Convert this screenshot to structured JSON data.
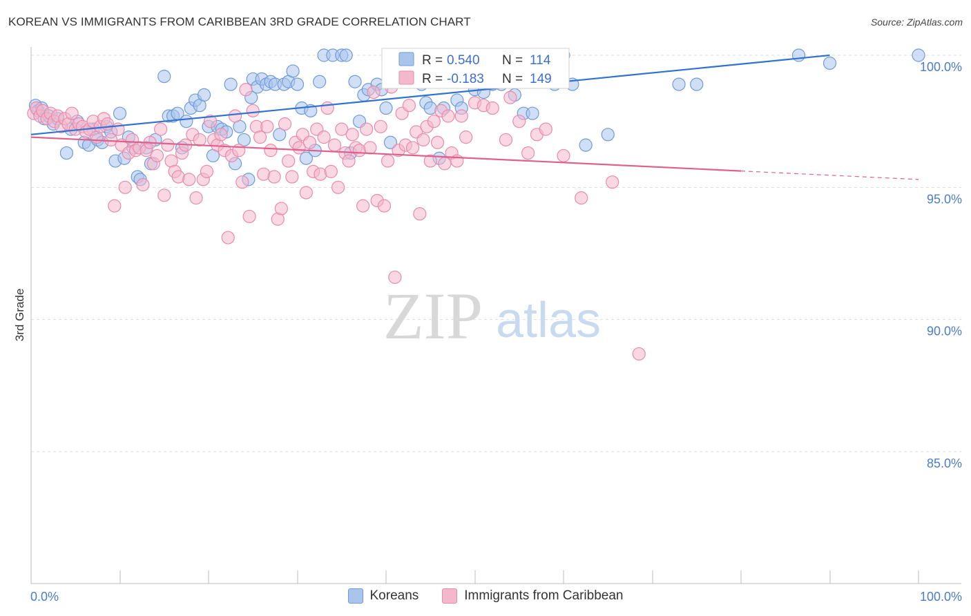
{
  "title": "KOREAN VS IMMIGRANTS FROM CARIBBEAN 3RD GRADE CORRELATION CHART",
  "source": "Source: ZipAtlas.com",
  "watermark": {
    "zip": "ZIP",
    "atlas": "atlas"
  },
  "colors": {
    "koreans_fill": "#a9c5ec",
    "koreans_stroke": "#6f9ad8",
    "koreans_line": "#2f72d0",
    "caribbean_fill": "#f4b8cc",
    "caribbean_stroke": "#e88aac",
    "caribbean_line": "#e0608c",
    "grid": "#dddddd",
    "axis_text": "#4a7cc9"
  },
  "legend": {
    "rows": [
      {
        "r_label": "R =",
        "r_value": "0.540",
        "n_label": "N =",
        "n_value": "114"
      },
      {
        "r_label": "R =",
        "r_value": "-0.183",
        "n_label": "N =",
        "n_value": "149"
      }
    ]
  },
  "bottom_legend": {
    "koreans": "Koreans",
    "caribbean": "Immigrants from Caribbean"
  },
  "chart_data": {
    "type": "scatter",
    "title": "KOREAN VS IMMIGRANTS FROM CARIBBEAN 3RD GRADE CORRELATION CHART",
    "xlabel": "",
    "ylabel": "3rd Grade",
    "xlim": [
      0,
      100
    ],
    "ylim": [
      80.5,
      100.6
    ],
    "x_tick_labels": [
      "0.0%",
      "100.0%"
    ],
    "y_ticks": [
      {
        "value": 100,
        "label": "100.0%"
      },
      {
        "value": 95,
        "label": "95.0%"
      },
      {
        "value": 90,
        "label": "90.0%"
      },
      {
        "value": 85,
        "label": "85.0%"
      }
    ],
    "series": [
      {
        "name": "Koreans",
        "r": 0.54,
        "n": 114,
        "trend": {
          "x": [
            0,
            90
          ],
          "y": [
            97.0,
            100.0
          ],
          "dashed_from": null
        },
        "points": [
          [
            0.5,
            98.1
          ],
          [
            0.8,
            97.9
          ],
          [
            1.2,
            98.0
          ],
          [
            1.5,
            97.6
          ],
          [
            2.0,
            97.7
          ],
          [
            2.5,
            97.4
          ],
          [
            3.0,
            97.6
          ],
          [
            4.0,
            96.3
          ],
          [
            4.5,
            97.2
          ],
          [
            5.2,
            97.5
          ],
          [
            6.0,
            96.7
          ],
          [
            6.5,
            96.6
          ],
          [
            7.0,
            97.2
          ],
          [
            7.5,
            96.8
          ],
          [
            8.0,
            96.7
          ],
          [
            8.5,
            97.3
          ],
          [
            9.0,
            97.1
          ],
          [
            9.5,
            96.0
          ],
          [
            10.0,
            97.8
          ],
          [
            10.5,
            96.1
          ],
          [
            11.0,
            96.9
          ],
          [
            11.5,
            96.5
          ],
          [
            12.0,
            95.4
          ],
          [
            12.3,
            95.3
          ],
          [
            13.0,
            96.5
          ],
          [
            13.5,
            95.9
          ],
          [
            14.0,
            96.8
          ],
          [
            15.0,
            99.2
          ],
          [
            15.5,
            97.7
          ],
          [
            16.0,
            97.7
          ],
          [
            16.5,
            97.8
          ],
          [
            17.0,
            96.5
          ],
          [
            17.5,
            97.5
          ],
          [
            18.0,
            98.0
          ],
          [
            18.5,
            98.3
          ],
          [
            19.0,
            98.1
          ],
          [
            19.5,
            98.5
          ],
          [
            20.0,
            97.3
          ],
          [
            20.5,
            96.2
          ],
          [
            21.0,
            97.3
          ],
          [
            21.5,
            97.2
          ],
          [
            22.0,
            97.1
          ],
          [
            22.5,
            98.9
          ],
          [
            23.0,
            95.9
          ],
          [
            23.5,
            97.3
          ],
          [
            24.0,
            96.8
          ],
          [
            24.5,
            95.3
          ],
          [
            24.8,
            98.4
          ],
          [
            25.0,
            99.1
          ],
          [
            25.5,
            98.8
          ],
          [
            26.0,
            99.1
          ],
          [
            26.5,
            98.9
          ],
          [
            27.0,
            99.0
          ],
          [
            27.5,
            98.9
          ],
          [
            28.0,
            97.0
          ],
          [
            28.5,
            98.9
          ],
          [
            29.0,
            99.0
          ],
          [
            29.5,
            99.4
          ],
          [
            30.0,
            98.9
          ],
          [
            30.5,
            98.0
          ],
          [
            31.0,
            96.1
          ],
          [
            31.5,
            97.9
          ],
          [
            32.0,
            96.4
          ],
          [
            32.5,
            99.0
          ],
          [
            33.0,
            100.0
          ],
          [
            34.0,
            100.0
          ],
          [
            35.0,
            100.0
          ],
          [
            35.5,
            100.0
          ],
          [
            36.0,
            96.3
          ],
          [
            36.5,
            99.0
          ],
          [
            37.0,
            97.5
          ],
          [
            37.5,
            98.5
          ],
          [
            38.0,
            98.7
          ],
          [
            39.0,
            98.9
          ],
          [
            39.5,
            98.7
          ],
          [
            40.0,
            98.0
          ],
          [
            40.5,
            96.7
          ],
          [
            41.0,
            100.0
          ],
          [
            42.0,
            100.0
          ],
          [
            43.0,
            100.0
          ],
          [
            44.0,
            98.9
          ],
          [
            44.5,
            98.2
          ],
          [
            45.0,
            98.0
          ],
          [
            46.0,
            96.1
          ],
          [
            46.5,
            98.0
          ],
          [
            48.0,
            98.3
          ],
          [
            48.5,
            98.0
          ],
          [
            50.0,
            98.7
          ],
          [
            51.0,
            98.6
          ],
          [
            52.0,
            98.9
          ],
          [
            53.0,
            98.9
          ],
          [
            54.5,
            98.5
          ],
          [
            55.5,
            97.8
          ],
          [
            56.5,
            97.8
          ],
          [
            57.0,
            100.0
          ],
          [
            58.0,
            100.0
          ],
          [
            59.0,
            98.9
          ],
          [
            60.0,
            100.0
          ],
          [
            61.0,
            98.9
          ],
          [
            62.5,
            96.6
          ],
          [
            65.0,
            97.0
          ],
          [
            73.0,
            98.9
          ],
          [
            75.0,
            98.9
          ],
          [
            86.5,
            100.0
          ],
          [
            90.0,
            99.7
          ],
          [
            100.0,
            100.0
          ]
        ]
      },
      {
        "name": "Immigrants from Caribbean",
        "r": -0.183,
        "n": 149,
        "trend": {
          "x": [
            0,
            100
          ],
          "y": [
            96.9,
            95.3
          ],
          "dashed_from": 80
        },
        "points": [
          [
            0.3,
            97.8
          ],
          [
            0.6,
            98.0
          ],
          [
            1.0,
            97.7
          ],
          [
            1.3,
            97.9
          ],
          [
            1.8,
            97.6
          ],
          [
            2.2,
            97.8
          ],
          [
            2.6,
            97.5
          ],
          [
            3.0,
            97.7
          ],
          [
            3.4,
            97.3
          ],
          [
            3.8,
            97.6
          ],
          [
            4.2,
            97.4
          ],
          [
            4.6,
            97.8
          ],
          [
            5.0,
            97.2
          ],
          [
            5.4,
            97.4
          ],
          [
            5.8,
            97.3
          ],
          [
            6.2,
            97.1
          ],
          [
            6.6,
            97.2
          ],
          [
            7.0,
            97.5
          ],
          [
            7.4,
            96.9
          ],
          [
            7.8,
            97.3
          ],
          [
            8.2,
            97.6
          ],
          [
            8.6,
            97.4
          ],
          [
            9.0,
            96.8
          ],
          [
            9.4,
            94.3
          ],
          [
            9.8,
            97.2
          ],
          [
            10.2,
            96.6
          ],
          [
            10.6,
            95.0
          ],
          [
            11.0,
            96.3
          ],
          [
            11.4,
            96.8
          ],
          [
            11.8,
            96.4
          ],
          [
            12.2,
            96.5
          ],
          [
            12.6,
            95.1
          ],
          [
            13.0,
            96.4
          ],
          [
            13.4,
            96.7
          ],
          [
            13.8,
            95.9
          ],
          [
            14.2,
            96.2
          ],
          [
            14.6,
            97.2
          ],
          [
            15.0,
            94.7
          ],
          [
            15.4,
            96.6
          ],
          [
            15.8,
            96.0
          ],
          [
            16.2,
            95.6
          ],
          [
            16.6,
            95.4
          ],
          [
            17.0,
            96.3
          ],
          [
            17.4,
            96.6
          ],
          [
            17.8,
            95.3
          ],
          [
            18.2,
            97.0
          ],
          [
            18.6,
            94.6
          ],
          [
            19.0,
            96.8
          ],
          [
            19.4,
            95.3
          ],
          [
            19.8,
            95.6
          ],
          [
            20.2,
            97.5
          ],
          [
            20.6,
            96.8
          ],
          [
            21.0,
            96.6
          ],
          [
            21.4,
            97.0
          ],
          [
            21.8,
            96.4
          ],
          [
            22.2,
            93.1
          ],
          [
            22.6,
            96.2
          ],
          [
            23.0,
            97.7
          ],
          [
            23.4,
            96.4
          ],
          [
            23.8,
            95.2
          ],
          [
            24.2,
            98.7
          ],
          [
            24.6,
            93.9
          ],
          [
            25.0,
            97.9
          ],
          [
            25.4,
            97.3
          ],
          [
            25.8,
            96.9
          ],
          [
            26.2,
            95.5
          ],
          [
            26.6,
            97.3
          ],
          [
            27.0,
            96.4
          ],
          [
            27.4,
            95.4
          ],
          [
            27.8,
            93.8
          ],
          [
            28.2,
            94.2
          ],
          [
            28.6,
            97.4
          ],
          [
            29.0,
            96.0
          ],
          [
            29.4,
            95.4
          ],
          [
            29.8,
            96.7
          ],
          [
            30.2,
            96.5
          ],
          [
            30.6,
            97.0
          ],
          [
            31.0,
            94.8
          ],
          [
            31.4,
            96.7
          ],
          [
            31.8,
            95.6
          ],
          [
            32.2,
            97.2
          ],
          [
            32.6,
            95.5
          ],
          [
            33.0,
            96.9
          ],
          [
            33.4,
            98.0
          ],
          [
            33.8,
            95.6
          ],
          [
            34.2,
            96.6
          ],
          [
            34.6,
            95.0
          ],
          [
            35.0,
            97.2
          ],
          [
            35.4,
            96.3
          ],
          [
            35.8,
            96.0
          ],
          [
            36.2,
            97.0
          ],
          [
            36.6,
            96.5
          ],
          [
            37.0,
            96.4
          ],
          [
            37.4,
            94.3
          ],
          [
            37.8,
            97.2
          ],
          [
            38.2,
            96.5
          ],
          [
            38.6,
            98.6
          ],
          [
            39.0,
            94.5
          ],
          [
            39.4,
            97.3
          ],
          [
            39.8,
            94.3
          ],
          [
            40.2,
            96.0
          ],
          [
            40.6,
            98.8
          ],
          [
            41.0,
            91.6
          ],
          [
            41.4,
            96.4
          ],
          [
            41.8,
            97.8
          ],
          [
            42.2,
            96.6
          ],
          [
            42.6,
            98.1
          ],
          [
            43.0,
            96.5
          ],
          [
            43.4,
            97.1
          ],
          [
            43.8,
            94.0
          ],
          [
            44.2,
            96.8
          ],
          [
            44.6,
            97.3
          ],
          [
            45.0,
            96.0
          ],
          [
            45.4,
            97.5
          ],
          [
            45.8,
            96.7
          ],
          [
            46.2,
            97.9
          ],
          [
            46.6,
            95.9
          ],
          [
            47.0,
            97.7
          ],
          [
            47.4,
            96.3
          ],
          [
            48.0,
            96.0
          ],
          [
            48.5,
            97.7
          ],
          [
            49.0,
            96.9
          ],
          [
            50.0,
            98.2
          ],
          [
            51.0,
            98.1
          ],
          [
            52.0,
            98.0
          ],
          [
            53.5,
            96.8
          ],
          [
            54.0,
            98.4
          ],
          [
            55.0,
            97.5
          ],
          [
            56.0,
            96.3
          ],
          [
            57.0,
            97.0
          ],
          [
            58.0,
            97.2
          ],
          [
            60.0,
            96.2
          ],
          [
            62.0,
            94.6
          ],
          [
            65.5,
            95.2
          ],
          [
            68.5,
            88.7
          ]
        ]
      }
    ]
  }
}
